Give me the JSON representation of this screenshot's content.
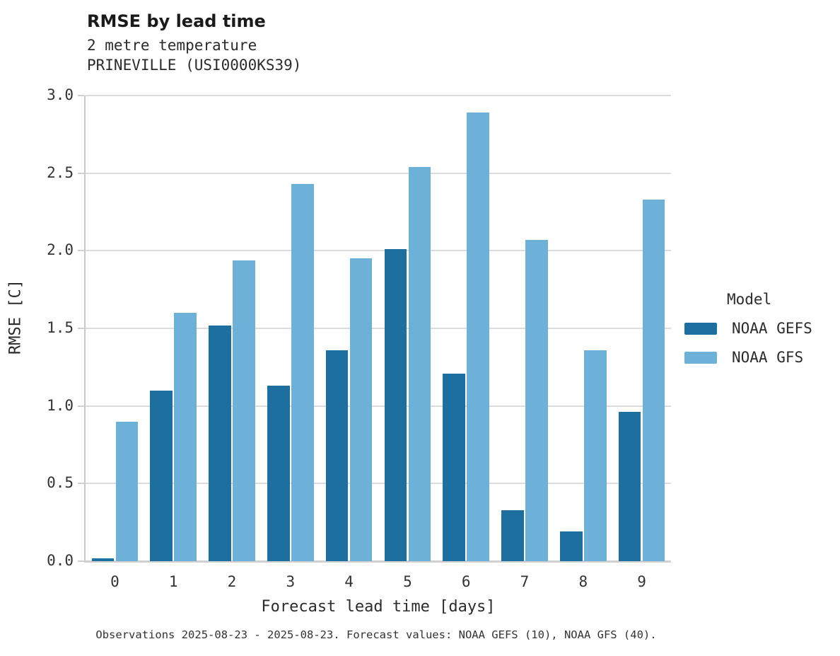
{
  "header": {
    "title": "RMSE by lead time",
    "subtitle_line1": "2 metre temperature",
    "subtitle_line2": "PRINEVILLE (USI0000KS39)"
  },
  "chart_data": {
    "type": "bar",
    "title": "RMSE by lead time",
    "subtitle": [
      "2 metre temperature",
      "PRINEVILLE (USI0000KS39)"
    ],
    "categories": [
      0,
      1,
      2,
      3,
      4,
      5,
      6,
      7,
      8,
      9
    ],
    "series": [
      {
        "name": "NOAA GEFS",
        "color": "#1d6f9f",
        "values": [
          0.02,
          1.1,
          1.52,
          1.13,
          1.36,
          2.01,
          1.21,
          0.33,
          0.19,
          0.96
        ]
      },
      {
        "name": "NOAA GFS",
        "color": "#6db1d8",
        "values": [
          0.9,
          1.6,
          1.94,
          2.43,
          1.95,
          2.54,
          2.89,
          2.07,
          1.36,
          2.33
        ]
      }
    ],
    "xlabel": "Forecast lead time [days]",
    "ylabel": "RMSE [C]",
    "ylim": [
      0.0,
      3.0
    ],
    "yticks": [
      0.0,
      0.5,
      1.0,
      1.5,
      2.0,
      2.5,
      3.0
    ],
    "grid": true,
    "legend_title": "Model",
    "legend_position": "right",
    "colors": {
      "gridline": "#dcdcdc",
      "baseline": "#d0d0d0",
      "spine": "#c9c9c9",
      "text": "#2b2b2b"
    }
  },
  "legend": {
    "title": "Model",
    "entries": [
      "NOAA GEFS",
      "NOAA GFS"
    ]
  },
  "caption": "Observations 2025-08-23 - 2025-08-23. Forecast values: NOAA GEFS (10), NOAA GFS (40)."
}
